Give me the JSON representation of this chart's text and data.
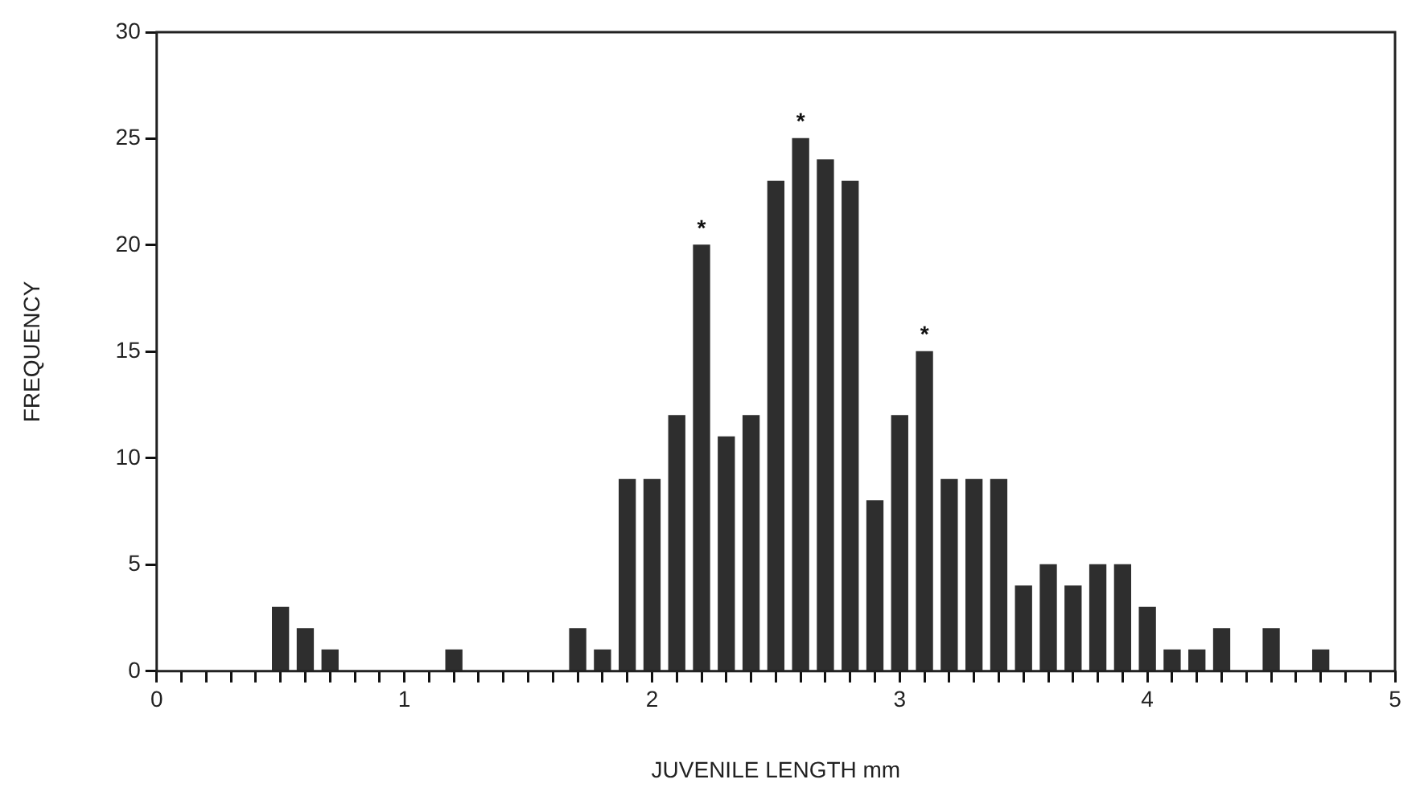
{
  "chart_data": {
    "type": "bar",
    "xlabel": "JUVENILE LENGTH mm",
    "ylabel": "FREQUENCY",
    "x": [
      0.5,
      0.6,
      0.7,
      1.2,
      1.7,
      1.8,
      1.9,
      2.0,
      2.1,
      2.2,
      2.3,
      2.4,
      2.5,
      2.6,
      2.7,
      2.8,
      2.9,
      3.0,
      3.1,
      3.2,
      3.3,
      3.4,
      3.5,
      3.6,
      3.7,
      3.8,
      3.9,
      4.0,
      4.1,
      4.2,
      4.3,
      4.5,
      4.7
    ],
    "values": [
      3,
      2,
      1,
      1,
      2,
      1,
      9,
      9,
      12,
      20,
      11,
      12,
      23,
      25,
      24,
      23,
      8,
      12,
      15,
      9,
      9,
      9,
      4,
      5,
      4,
      5,
      5,
      3,
      1,
      1,
      2,
      2,
      1
    ],
    "color": "#2e2e2e",
    "xlim": [
      0,
      5
    ],
    "xticks": [
      0,
      {
        "value": 0.1,
        "label": null
      },
      {
        "value": 0.2,
        "label": null
      },
      {
        "value": 0.3,
        "label": null
      },
      {
        "value": 0.4,
        "label": null
      },
      {
        "value": 0.5,
        "label": null
      },
      {
        "value": 0.6,
        "label": null
      },
      {
        "value": 0.7,
        "label": null
      },
      {
        "value": 0.8,
        "label": null
      },
      {
        "value": 0.9,
        "label": null
      },
      1,
      {
        "value": 1.1,
        "label": null
      },
      {
        "value": 1.2,
        "label": null
      },
      {
        "value": 1.3,
        "label": null
      },
      {
        "value": 1.4,
        "label": null
      },
      {
        "value": 1.5,
        "label": null
      },
      {
        "value": 1.6,
        "label": null
      },
      {
        "value": 1.7,
        "label": null
      },
      {
        "value": 1.8,
        "label": null
      },
      {
        "value": 1.9,
        "label": null
      },
      2,
      {
        "value": 2.1,
        "label": null
      },
      {
        "value": 2.2,
        "label": null
      },
      {
        "value": 2.3,
        "label": null
      },
      {
        "value": 2.4,
        "label": null
      },
      {
        "value": 2.5,
        "label": null
      },
      {
        "value": 2.6,
        "label": null
      },
      {
        "value": 2.7,
        "label": null
      },
      {
        "value": 2.8,
        "label": null
      },
      {
        "value": 2.9,
        "label": null
      },
      3,
      {
        "value": 3.1,
        "label": null
      },
      {
        "value": 3.2,
        "label": null
      },
      {
        "value": 3.3,
        "label": null
      },
      {
        "value": 3.4,
        "label": null
      },
      {
        "value": 3.5,
        "label": null
      },
      {
        "value": 3.6,
        "label": null
      },
      {
        "value": 3.7,
        "label": null
      },
      {
        "value": 3.8,
        "label": null
      },
      {
        "value": 3.9,
        "label": null
      },
      4,
      {
        "value": 4.1,
        "label": null
      },
      {
        "value": 4.2,
        "label": null
      },
      {
        "value": 4.3,
        "label": null
      },
      {
        "value": 4.4,
        "label": null
      },
      {
        "value": 4.5,
        "label": null
      },
      {
        "value": 4.6,
        "label": null
      },
      {
        "value": 4.7,
        "label": null
      },
      {
        "value": 4.8,
        "label": null
      },
      {
        "value": 4.9,
        "label": null
      },
      5
    ],
    "ylim": [
      0,
      30
    ],
    "yticks": [
      0,
      5,
      10,
      15,
      20,
      25,
      30
    ],
    "grid": false,
    "legend": false,
    "annotations": [
      {
        "text": "*",
        "x": 2.2,
        "y": 20
      },
      {
        "text": "*",
        "x": 2.6,
        "y": 25
      },
      {
        "text": "*",
        "x": 3.1,
        "y": 15
      }
    ]
  }
}
